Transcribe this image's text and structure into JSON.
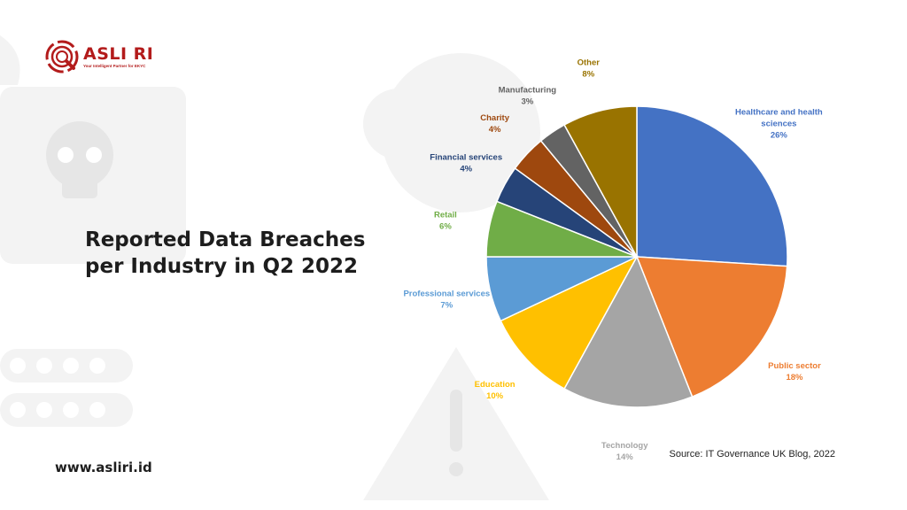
{
  "brand": {
    "name": "ASLI RI",
    "tagline": "Your Intelligent Partner for EKYC",
    "website": "www.asliri.id",
    "color": "#b31b1b"
  },
  "title_line1": "Reported Data Breaches",
  "title_line2": "per Industry in Q2 2022",
  "source": "Source: IT Governance UK Blog, 2022",
  "chart_data": {
    "type": "pie",
    "title": "Reported Data Breaches per Industry in Q2 2022",
    "slices": [
      {
        "label": [
          "Healthcare and health",
          "sciences"
        ],
        "value": 26,
        "display": "26%",
        "color": "#4472c4"
      },
      {
        "label": [
          "Public sector"
        ],
        "value": 18,
        "display": "18%",
        "color": "#ed7d31"
      },
      {
        "label": [
          "Technology"
        ],
        "value": 14,
        "display": "14%",
        "color": "#a5a5a5"
      },
      {
        "label": [
          "Education"
        ],
        "value": 10,
        "display": "10%",
        "color": "#ffc000"
      },
      {
        "label": [
          "Professional services"
        ],
        "value": 7,
        "display": "7%",
        "color": "#5b9bd5"
      },
      {
        "label": [
          "Retail"
        ],
        "value": 6,
        "display": "6%",
        "color": "#70ad47"
      },
      {
        "label": [
          "Financial services"
        ],
        "value": 4,
        "display": "4%",
        "color": "#264478"
      },
      {
        "label": [
          "Charity"
        ],
        "value": 4,
        "display": "4%",
        "color": "#9e480e"
      },
      {
        "label": [
          "Manufacturing"
        ],
        "value": 3,
        "display": "3%",
        "color": "#636363"
      },
      {
        "label": [
          "Other"
        ],
        "value": 8,
        "display": "8%",
        "color": "#997300"
      }
    ]
  }
}
